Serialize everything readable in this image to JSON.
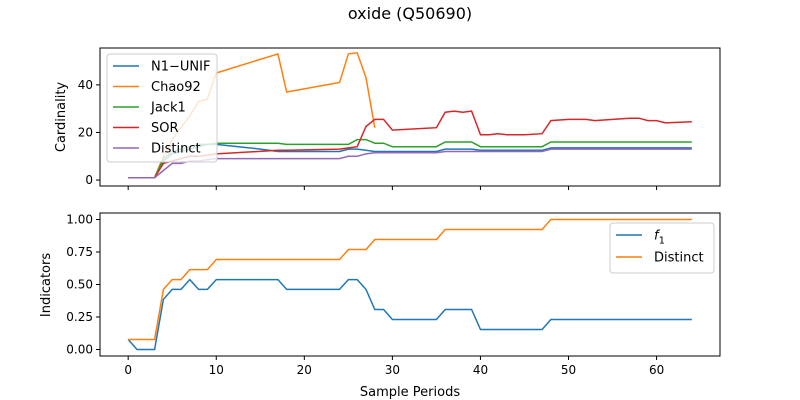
{
  "figure": {
    "title": "oxide (Q50690)"
  },
  "colors": {
    "blue": "#1f77b4",
    "orange": "#ff7f0e",
    "green": "#2ca02c",
    "red": "#d62728",
    "purple": "#9467bd"
  },
  "chart_data": [
    {
      "type": "line",
      "title": "",
      "xlabel": "",
      "ylabel": "Cardinality",
      "xlim": [
        -3.2,
        67.2
      ],
      "ylim": [
        -2.5,
        55.5
      ],
      "xticks": [
        0,
        10,
        20,
        30,
        40,
        50,
        60
      ],
      "yticks": [
        0,
        20,
        40
      ],
      "xtick_labels_shown": false,
      "legend_position": "upper-left",
      "series": [
        {
          "name": "N1−UNIF",
          "color": "#1f77b4",
          "x": [
            0,
            1,
            2,
            3,
            4,
            5,
            6,
            7,
            8,
            9,
            10,
            15,
            16,
            17,
            18,
            19,
            20,
            21,
            22,
            23,
            24,
            25,
            26,
            27,
            28,
            29,
            30,
            35,
            36,
            37,
            38,
            39,
            40,
            47,
            48,
            64
          ],
          "y": [
            1,
            1,
            1,
            1,
            8,
            11,
            12,
            13,
            14,
            15,
            15,
            13,
            12.5,
            12,
            12,
            12,
            12,
            12,
            12,
            12,
            12,
            13,
            13,
            12.5,
            12,
            12,
            12,
            12,
            13,
            13,
            13,
            13,
            12.5,
            12.5,
            13.5,
            13.5
          ]
        },
        {
          "name": "Chao92",
          "color": "#ff7f0e",
          "x": [
            0,
            1,
            2,
            3,
            4,
            5,
            6,
            7,
            8,
            9,
            10,
            17,
            18,
            24,
            25,
            26,
            27,
            28
          ],
          "y": [
            1,
            1,
            1,
            1,
            10,
            17,
            22,
            27,
            33,
            34,
            45,
            53,
            37,
            41,
            53,
            53.5,
            43,
            22
          ]
        },
        {
          "name": "Jack1",
          "color": "#2ca02c",
          "x": [
            0,
            1,
            2,
            3,
            4,
            5,
            6,
            7,
            8,
            9,
            10,
            17,
            18,
            24,
            25,
            26,
            27,
            28,
            29,
            30,
            35,
            36,
            39,
            40,
            47,
            48,
            64
          ],
          "y": [
            1,
            1,
            1,
            1,
            9,
            12,
            13,
            14,
            15,
            15,
            15.5,
            15.5,
            15,
            15,
            15,
            17,
            17,
            15.5,
            15.5,
            14,
            14,
            16,
            16,
            14,
            14,
            16,
            16
          ]
        },
        {
          "name": "SOR",
          "color": "#d62728",
          "x": [
            0,
            1,
            2,
            3,
            4,
            5,
            6,
            7,
            8,
            9,
            10,
            17,
            18,
            24,
            25,
            26,
            27,
            28,
            29,
            30,
            35,
            36,
            37,
            38,
            39,
            40,
            41,
            42,
            43,
            45,
            47,
            48,
            50,
            52,
            53,
            55,
            57,
            58,
            59,
            60,
            61,
            64
          ],
          "y": [
            1,
            1,
            1,
            1,
            7,
            8,
            9,
            10,
            10,
            10.5,
            11,
            12.5,
            12.5,
            13,
            13.5,
            14,
            22.5,
            25.5,
            25.5,
            21,
            22,
            28.5,
            29,
            28.5,
            29,
            19,
            19,
            19.5,
            19,
            19,
            19.5,
            25,
            25.5,
            25.5,
            25,
            25.5,
            26,
            26,
            25,
            25,
            24,
            24.5
          ]
        },
        {
          "name": "Distinct",
          "color": "#9467bd",
          "x": [
            0,
            1,
            2,
            3,
            4,
            5,
            6,
            7,
            8,
            9,
            10,
            24,
            25,
            26,
            27,
            28,
            35,
            36,
            40,
            47,
            48,
            64
          ],
          "y": [
            1,
            1,
            1,
            1,
            4,
            7,
            7,
            8,
            8,
            8.5,
            9,
            9,
            10,
            10,
            11,
            11.5,
            11.5,
            12,
            12,
            12,
            13,
            13
          ]
        }
      ]
    },
    {
      "type": "line",
      "title": "",
      "xlabel": "Sample Periods",
      "ylabel": "Indicators",
      "xlim": [
        -3.2,
        67.2
      ],
      "ylim": [
        -0.05,
        1.05
      ],
      "xticks": [
        0,
        10,
        20,
        30,
        40,
        50,
        60
      ],
      "yticks": [
        0.0,
        0.25,
        0.5,
        0.75,
        1.0
      ],
      "ytick_labels": [
        "0.00",
        "0.25",
        "0.50",
        "0.75",
        "1.00"
      ],
      "legend_position": "upper-right",
      "series": [
        {
          "name": "f",
          "name_subscript": "1",
          "color": "#1f77b4",
          "x": [
            0,
            1,
            2,
            3,
            4,
            5,
            6,
            7,
            8,
            9,
            10,
            17,
            18,
            24,
            25,
            26,
            27,
            28,
            29,
            30,
            35,
            36,
            39,
            40,
            47,
            48,
            64
          ],
          "y": [
            0.077,
            0,
            0,
            0,
            0.385,
            0.462,
            0.462,
            0.538,
            0.462,
            0.462,
            0.538,
            0.538,
            0.462,
            0.462,
            0.538,
            0.538,
            0.462,
            0.308,
            0.308,
            0.231,
            0.231,
            0.308,
            0.308,
            0.154,
            0.154,
            0.231,
            0.231
          ]
        },
        {
          "name": "Distinct",
          "color": "#ff7f0e",
          "x": [
            0,
            1,
            2,
            3,
            4,
            5,
            6,
            7,
            8,
            9,
            10,
            24,
            25,
            26,
            27,
            28,
            35,
            36,
            47,
            48,
            64
          ],
          "y": [
            0.077,
            0.077,
            0.077,
            0.077,
            0.462,
            0.538,
            0.538,
            0.615,
            0.615,
            0.615,
            0.692,
            0.692,
            0.769,
            0.769,
            0.769,
            0.846,
            0.846,
            0.923,
            0.923,
            1.0,
            1.0
          ]
        }
      ]
    }
  ]
}
